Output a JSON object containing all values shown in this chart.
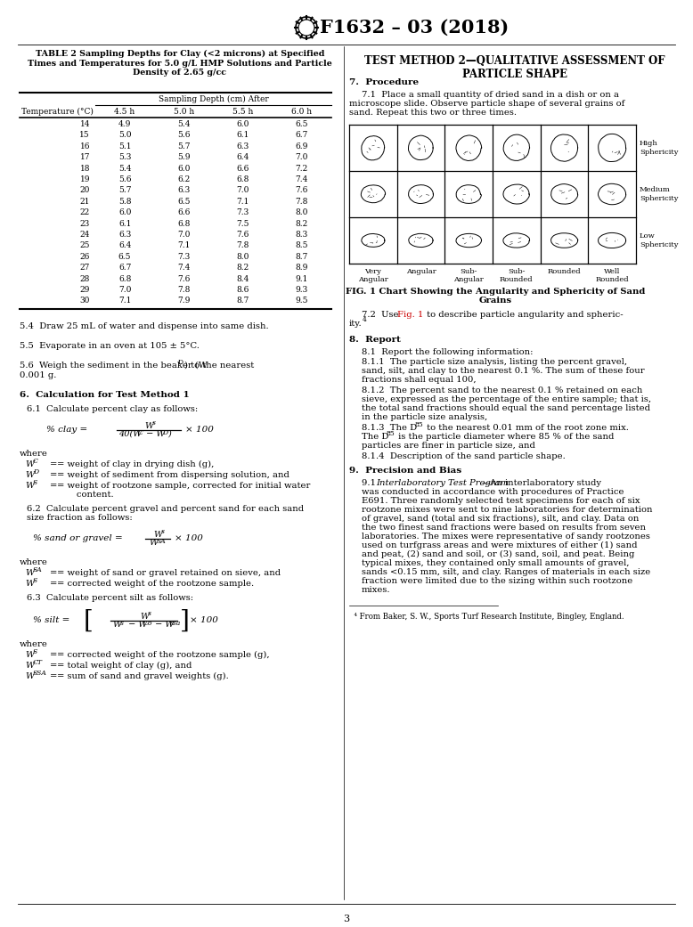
{
  "title_header": "F1632 – 03 (2018)",
  "background_color": "#ffffff",
  "page_number": "3",
  "left_column": {
    "table_title": "TABLE 2 Sampling Depths for Clay (<2 microns) at Specified\nTimes and Temperatures for 5.0 g/L HMP Solutions and Particle\nDensity of 2.65 g/cc",
    "table_col_header_main": "Sampling Depth (cm) After",
    "table_col_headers": [
      "Temperature (°C)",
      "4.5 h",
      "5.0 h",
      "5.5 h",
      "6.0 h"
    ],
    "table_data": [
      [
        14,
        4.9,
        5.4,
        6.0,
        6.5
      ],
      [
        15,
        5.0,
        5.6,
        6.1,
        6.7
      ],
      [
        16,
        5.1,
        5.7,
        6.3,
        6.9
      ],
      [
        17,
        5.3,
        5.9,
        6.4,
        7.0
      ],
      [
        18,
        5.4,
        6.0,
        6.6,
        7.2
      ],
      [
        19,
        5.6,
        6.2,
        6.8,
        7.4
      ],
      [
        20,
        5.7,
        6.3,
        7.0,
        7.6
      ],
      [
        21,
        5.8,
        6.5,
        7.1,
        7.8
      ],
      [
        22,
        6.0,
        6.6,
        7.3,
        8.0
      ],
      [
        23,
        6.1,
        6.8,
        7.5,
        8.2
      ],
      [
        24,
        6.3,
        7.0,
        7.6,
        8.3
      ],
      [
        25,
        6.4,
        7.1,
        7.8,
        8.5
      ],
      [
        26,
        6.5,
        7.3,
        8.0,
        8.7
      ],
      [
        27,
        6.7,
        7.4,
        8.2,
        8.9
      ],
      [
        28,
        6.8,
        7.6,
        8.4,
        9.1
      ],
      [
        29,
        7.0,
        7.8,
        8.6,
        9.3
      ],
      [
        30,
        7.1,
        7.9,
        8.7,
        9.5
      ]
    ],
    "para_54": "5.4  Draw 25 mL of water and dispense into same dish.",
    "para_55": "5.5  Evaporate in an oven at 105 ± 5°C.",
    "section6_title": "6.  Calculation for Test Method 1",
    "para_61": "6.1  Calculate percent clay as follows:",
    "para_62a": "6.2  Calculate percent gravel and percent sand for each sand",
    "para_62b": "size fraction as follows:",
    "para_63": "6.3  Calculate percent silt as follows:",
    "where_61_items": [
      [
        "C",
        "= weight of clay in drying dish (g),"
      ],
      [
        "D",
        "= weight of sediment from dispersing solution, and"
      ],
      [
        "S",
        "= weight of rootzone sample, corrected for initial water\n       content."
      ]
    ],
    "where_62_items": [
      [
        "SA",
        "= weight of sand or gravel retained on sieve, and"
      ],
      [
        "S",
        "= corrected weight of the rootzone sample."
      ]
    ],
    "where_63_items": [
      [
        "S",
        "= corrected weight of the rootzone sample (g),"
      ],
      [
        "CT",
        "= total weight of clay (g), and"
      ],
      [
        "SSA",
        "= sum of sand and gravel weights (g)."
      ]
    ]
  },
  "right_column": {
    "section_title": "TEST METHOD 2—QUALITATIVE ASSESSMENT OF\nPARTICLE SHAPE",
    "section7_title": "7.  Procedure",
    "para_71a": "7.1  Place a small quantity of dried sand in a dish or on a",
    "para_71b": "microscope slide. Observe particle shape of several grains of",
    "para_71c": "sand. Repeat this two or three times.",
    "fig_caption_a": "FIG. 1 Chart Showing the Angularity and Sphericity of Sand",
    "fig_caption_b": "Grains",
    "fig_row_labels": [
      "High\nSphericity",
      "Medium\nSphericity",
      "Low\nSphericity"
    ],
    "fig_col_labels": [
      "Very\nAngular",
      "Angular",
      "Sub-\nAngular",
      "Sub-\nRounded",
      "Rounded",
      "Well\nRounded"
    ],
    "para_72_ref_color": "#cc0000",
    "section8_title": "8.  Report",
    "para_81": "8.1  Report the following information:",
    "section9_title": "9.  Precision and Bias",
    "footnote": "4 From Baker, S. W., Sports Turf Research Institute, Bingley, England."
  }
}
